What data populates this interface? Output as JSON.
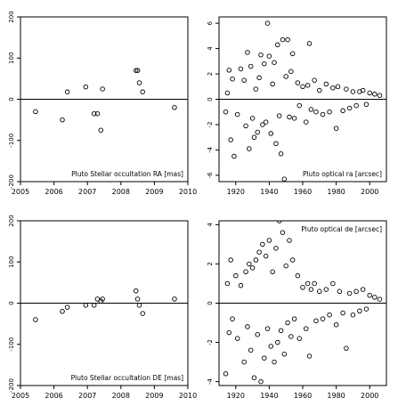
{
  "chart_data": [
    {
      "type": "scatter",
      "title": "Pluto Stellar occultation RA [mas]",
      "xlim": [
        2005,
        2010
      ],
      "ylim": [
        -200,
        200
      ],
      "xticks": [
        2005,
        2006,
        2007,
        2008,
        2009,
        2010
      ],
      "yticks": [
        -200,
        -100,
        0,
        100,
        200
      ],
      "hline": 0,
      "legend_position": "bottom-right",
      "points": [
        [
          2005.45,
          -30
        ],
        [
          2006.25,
          -50
        ],
        [
          2006.4,
          18
        ],
        [
          2006.95,
          30
        ],
        [
          2007.2,
          -35
        ],
        [
          2007.3,
          -35
        ],
        [
          2007.4,
          -75
        ],
        [
          2007.45,
          25
        ],
        [
          2008.45,
          70
        ],
        [
          2008.5,
          70
        ],
        [
          2008.55,
          40
        ],
        [
          2008.65,
          18
        ],
        [
          2009.6,
          -20
        ]
      ]
    },
    {
      "type": "scatter",
      "title": "Pluto optical ra [arcsec]",
      "xlim": [
        1910,
        2010
      ],
      "ylim": [
        -6.5,
        6.5
      ],
      "xticks": [
        1920,
        1940,
        1960,
        1980,
        2000
      ],
      "yticks": [
        -6,
        -4,
        -2,
        0,
        2,
        4,
        6
      ],
      "hline": 0,
      "legend_position": "bottom-right",
      "points": [
        [
          1914,
          -1.0
        ],
        [
          1915,
          0.5
        ],
        [
          1916,
          2.3
        ],
        [
          1917,
          -3.2
        ],
        [
          1918,
          1.6
        ],
        [
          1919,
          -4.5
        ],
        [
          1921,
          -1.2
        ],
        [
          1923,
          2.4
        ],
        [
          1925,
          1.5
        ],
        [
          1926,
          -2.1
        ],
        [
          1927,
          3.7
        ],
        [
          1928,
          -3.9
        ],
        [
          1929,
          2.6
        ],
        [
          1930,
          -1.5
        ],
        [
          1931,
          -3.0
        ],
        [
          1932,
          0.8
        ],
        [
          1933,
          -2.6
        ],
        [
          1934,
          1.7
        ],
        [
          1935,
          3.5
        ],
        [
          1936,
          -2.0
        ],
        [
          1937,
          2.8
        ],
        [
          1938,
          -1.8
        ],
        [
          1939,
          6.0
        ],
        [
          1940,
          3.4
        ],
        [
          1941,
          -2.7
        ],
        [
          1942,
          1.2
        ],
        [
          1943,
          2.9
        ],
        [
          1944,
          -3.5
        ],
        [
          1945,
          4.3
        ],
        [
          1946,
          -1.3
        ],
        [
          1947,
          -4.3
        ],
        [
          1948,
          4.7
        ],
        [
          1949,
          -6.3
        ],
        [
          1950,
          1.8
        ],
        [
          1951,
          4.7
        ],
        [
          1952,
          -1.4
        ],
        [
          1953,
          2.2
        ],
        [
          1954,
          3.6
        ],
        [
          1955,
          -1.5
        ],
        [
          1957,
          1.3
        ],
        [
          1958,
          -0.5
        ],
        [
          1960,
          1.0
        ],
        [
          1962,
          -1.8
        ],
        [
          1963,
          1.1
        ],
        [
          1964,
          4.4
        ],
        [
          1965,
          -0.8
        ],
        [
          1967,
          1.5
        ],
        [
          1968,
          -1.0
        ],
        [
          1970,
          0.7
        ],
        [
          1972,
          -1.2
        ],
        [
          1974,
          1.2
        ],
        [
          1976,
          -1.0
        ],
        [
          1978,
          0.9
        ],
        [
          1980,
          -2.3
        ],
        [
          1981,
          1.0
        ],
        [
          1984,
          -0.9
        ],
        [
          1986,
          0.8
        ],
        [
          1988,
          -0.7
        ],
        [
          1990,
          0.6
        ],
        [
          1992,
          -0.5
        ],
        [
          1994,
          0.6
        ],
        [
          1996,
          0.7
        ],
        [
          1998,
          -0.4
        ],
        [
          2000,
          0.5
        ],
        [
          2003,
          0.4
        ],
        [
          2006,
          0.3
        ]
      ]
    },
    {
      "type": "scatter",
      "title": "Pluto Stellar occultation DE [mas]",
      "xlim": [
        2005,
        2010
      ],
      "ylim": [
        -200,
        200
      ],
      "xticks": [
        2005,
        2006,
        2007,
        2008,
        2009,
        2010
      ],
      "yticks": [
        -200,
        -100,
        0,
        100,
        200
      ],
      "hline": 0,
      "legend_position": "bottom-right",
      "points": [
        [
          2005.45,
          -40
        ],
        [
          2006.25,
          -20
        ],
        [
          2006.4,
          -10
        ],
        [
          2006.95,
          -5
        ],
        [
          2007.2,
          -5
        ],
        [
          2007.3,
          10
        ],
        [
          2007.4,
          5
        ],
        [
          2007.45,
          10
        ],
        [
          2008.45,
          30
        ],
        [
          2008.5,
          10
        ],
        [
          2008.55,
          -5
        ],
        [
          2008.65,
          -25
        ],
        [
          2009.6,
          10
        ]
      ]
    },
    {
      "type": "scatter",
      "title": "Pluto optical de [arcsec]",
      "xlim": [
        1910,
        2010
      ],
      "ylim": [
        -4.2,
        4.2
      ],
      "xticks": [
        1920,
        1940,
        1960,
        1980,
        2000
      ],
      "yticks": [
        -4,
        -2,
        0,
        2,
        4
      ],
      "hline": 0,
      "legend_position": "top-right",
      "points": [
        [
          1914,
          -3.6
        ],
        [
          1915,
          1.0
        ],
        [
          1916,
          -1.5
        ],
        [
          1917,
          2.2
        ],
        [
          1918,
          -0.8
        ],
        [
          1920,
          1.4
        ],
        [
          1921,
          -1.8
        ],
        [
          1923,
          0.9
        ],
        [
          1925,
          -3.0
        ],
        [
          1926,
          1.6
        ],
        [
          1927,
          -1.2
        ],
        [
          1928,
          2.0
        ],
        [
          1929,
          -2.4
        ],
        [
          1930,
          1.8
        ],
        [
          1931,
          -3.8
        ],
        [
          1932,
          2.2
        ],
        [
          1933,
          -1.6
        ],
        [
          1934,
          2.6
        ],
        [
          1935,
          -4.0
        ],
        [
          1936,
          3.0
        ],
        [
          1937,
          -2.8
        ],
        [
          1938,
          2.4
        ],
        [
          1939,
          -1.3
        ],
        [
          1940,
          3.2
        ],
        [
          1941,
          -2.2
        ],
        [
          1942,
          1.6
        ],
        [
          1943,
          -3.0
        ],
        [
          1944,
          2.8
        ],
        [
          1945,
          -2.0
        ],
        [
          1946,
          4.2
        ],
        [
          1947,
          -1.4
        ],
        [
          1948,
          3.6
        ],
        [
          1949,
          -2.6
        ],
        [
          1950,
          1.9
        ],
        [
          1951,
          -1.0
        ],
        [
          1952,
          3.2
        ],
        [
          1953,
          -1.7
        ],
        [
          1954,
          2.2
        ],
        [
          1955,
          -0.8
        ],
        [
          1957,
          1.4
        ],
        [
          1958,
          -1.8
        ],
        [
          1960,
          0.8
        ],
        [
          1962,
          -1.3
        ],
        [
          1963,
          1.0
        ],
        [
          1964,
          -2.7
        ],
        [
          1965,
          0.7
        ],
        [
          1967,
          1.0
        ],
        [
          1968,
          -0.9
        ],
        [
          1970,
          0.6
        ],
        [
          1972,
          -0.8
        ],
        [
          1974,
          0.7
        ],
        [
          1976,
          -0.6
        ],
        [
          1978,
          1.0
        ],
        [
          1980,
          -1.1
        ],
        [
          1982,
          0.6
        ],
        [
          1984,
          -0.5
        ],
        [
          1986,
          -2.3
        ],
        [
          1988,
          0.5
        ],
        [
          1990,
          -0.6
        ],
        [
          1992,
          0.6
        ],
        [
          1994,
          -0.4
        ],
        [
          1996,
          0.7
        ],
        [
          1998,
          -0.3
        ],
        [
          2000,
          0.4
        ],
        [
          2003,
          0.3
        ],
        [
          2006,
          0.2
        ]
      ]
    }
  ]
}
